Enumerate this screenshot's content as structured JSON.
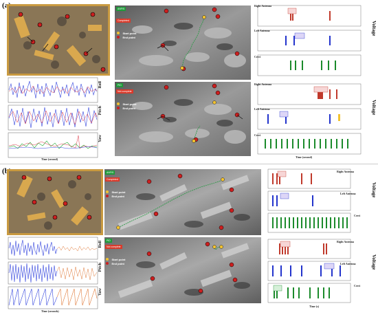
{
  "panels": [
    {
      "letter": "(a)",
      "attitude_labels": [
        "Roll",
        "Pitch",
        "Yaw"
      ],
      "attitude_xlabel": "Time (second)",
      "runs": [
        {
          "method": "ANFIS",
          "status": "Completed"
        },
        {
          "method": "PID",
          "status": "Not complete"
        }
      ],
      "legend": {
        "start": "Start point",
        "end": "End point"
      },
      "voltage_groups": [
        {
          "channels": [
            "Right Antenna",
            "Left Antenna",
            "Cerci"
          ],
          "xlabel": ""
        },
        {
          "channels": [
            "Right Antenna",
            "Left Antenna",
            "Cerci"
          ],
          "xlabel": "Time (second)"
        }
      ],
      "voltage_axis": "Voltage"
    },
    {
      "letter": "(b)",
      "attitude_labels": [
        "Roll",
        "Pitch",
        "Yaw"
      ],
      "attitude_xlabel": "Time (seconds)",
      "runs": [
        {
          "method": "ANFIS",
          "status": "Completed"
        },
        {
          "method": "PID",
          "status": "Not complete"
        }
      ],
      "legend": {
        "start": "Start point",
        "end": "End point"
      },
      "voltage_groups": [
        {
          "channels": [
            "Right Antenna",
            "Left Antenna",
            "Cerci"
          ],
          "xlabel": ""
        },
        {
          "channels": [
            "Right Antenna",
            "Left Antenna",
            "Cerci"
          ],
          "xlabel": "Time (s)"
        }
      ],
      "voltage_axis": "Voltage"
    }
  ],
  "colors": {
    "green_badge": "#1f9a3a",
    "red_badge": "#d93a2b",
    "right_antenna": "#c0392b",
    "left_antenna": "#2233cc",
    "cerci": "#1a8a2a",
    "roll": "#3344dd",
    "pitch": "#dd3344",
    "yaw": "#22aa33"
  }
}
